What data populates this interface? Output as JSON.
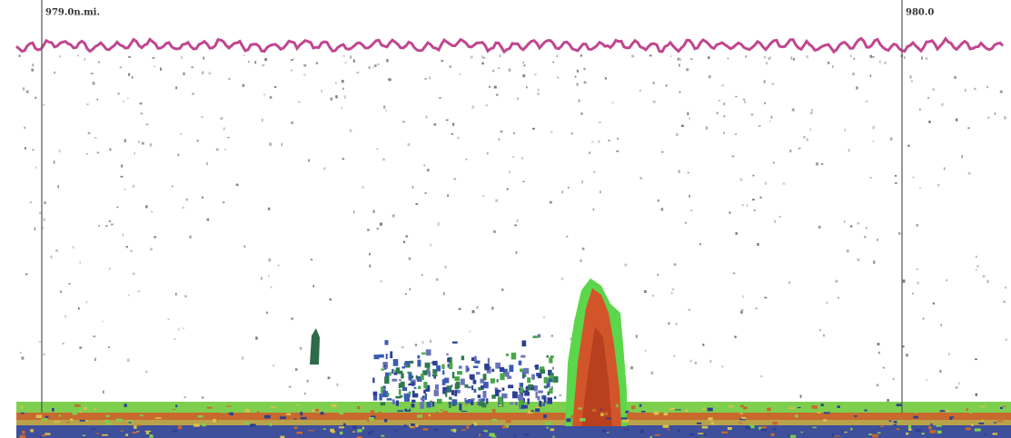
{
  "markers": [
    {
      "label": "979.0n.mi."
    },
    {
      "label": "980.0"
    }
  ]
}
